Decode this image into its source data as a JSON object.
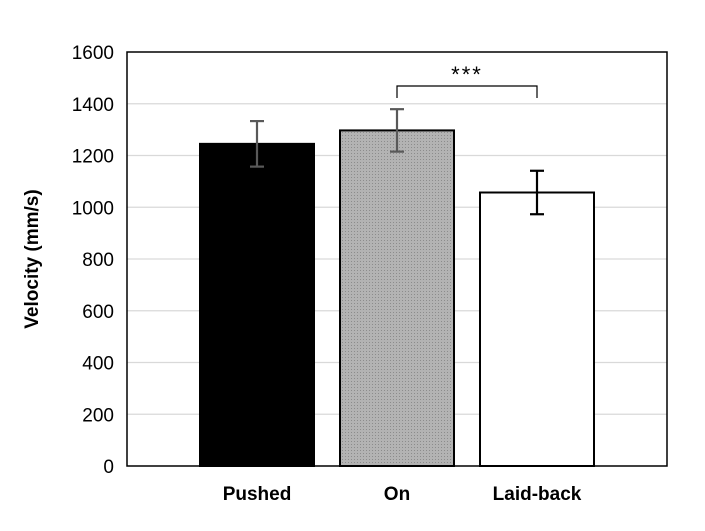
{
  "chart_data": {
    "type": "bar",
    "ylabel": "Velocity (mm/s)",
    "xlabel": "",
    "ylim": [
      0,
      1600
    ],
    "yticks": [
      "0",
      "200",
      "400",
      "600",
      "800",
      "1000",
      "1200",
      "1400",
      "1600"
    ],
    "grid": true,
    "legend": "none",
    "categories": [
      "Pushed",
      "On",
      "Laid-back"
    ],
    "values": [
      1245,
      1297,
      1057
    ],
    "errors": [
      88,
      82,
      84
    ],
    "bar_colors": [
      "#000000",
      "#a6a6a6",
      "#ffffff"
    ],
    "significance": {
      "from": "On",
      "to": "Laid-back",
      "label": "***"
    }
  }
}
